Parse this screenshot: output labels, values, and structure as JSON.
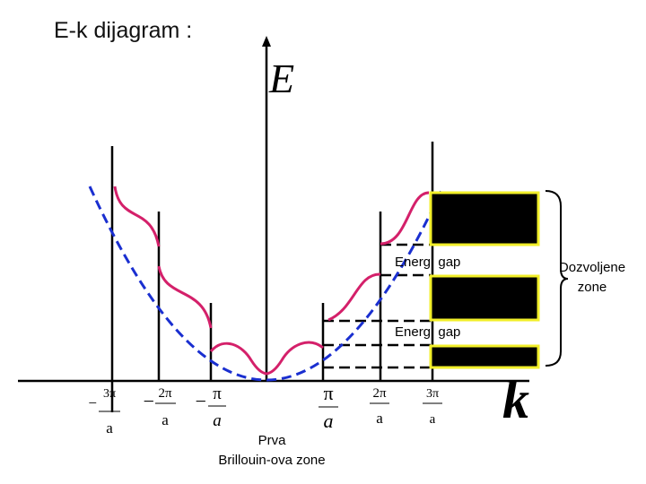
{
  "title": "E-k dijagram :",
  "axes": {
    "y_label": "E",
    "x_label": "k"
  },
  "ticks": [
    {
      "sign": "−",
      "num": "3π",
      "den": "a"
    },
    {
      "sign": "−",
      "num": "2π",
      "den": "a"
    },
    {
      "sign": "−",
      "num": "π",
      "den": "a"
    },
    {
      "num": "π",
      "den": "a"
    },
    {
      "num": "2π",
      "den": "a"
    },
    {
      "num": "3π",
      "den": "a"
    }
  ],
  "gaps": [
    "Energ. gap",
    "Energ. gap"
  ],
  "allowed_zones": [
    "Dozvoljene",
    "zone"
  ],
  "brillouin": [
    "Prva",
    "Brillouin-ova zone"
  ]
}
